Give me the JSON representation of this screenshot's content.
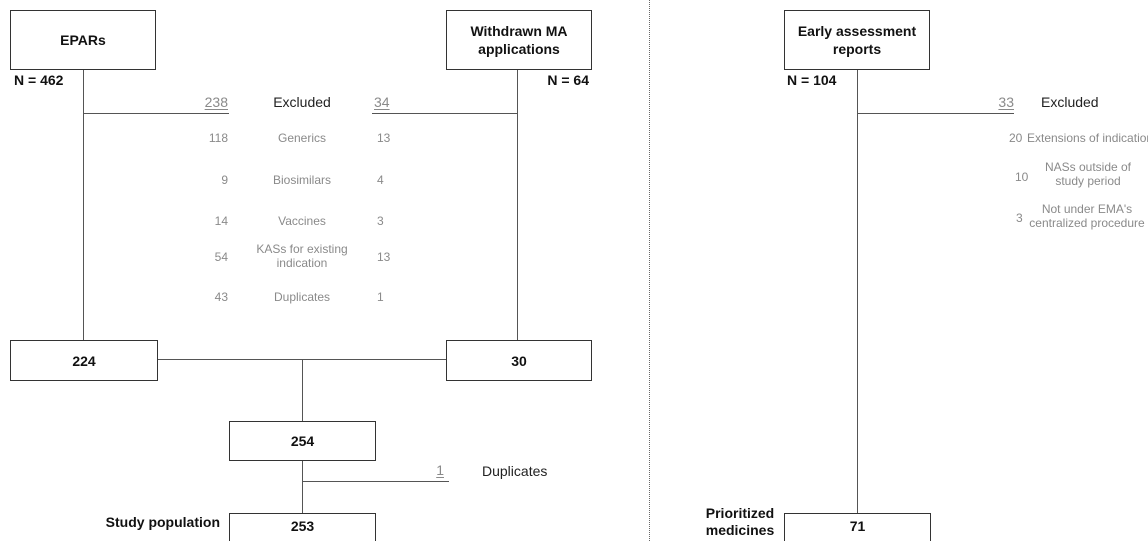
{
  "left": {
    "epars": {
      "label": "EPARs",
      "n": "N = 462"
    },
    "withdrawn": {
      "label": "Withdrawn MA applications",
      "n": "N = 64"
    },
    "excluded": {
      "label": "Excluded",
      "epars_total": "238",
      "withdrawn_total": "34"
    },
    "exclusions": [
      {
        "label": "Generics",
        "epars": "118",
        "withdrawn": "13"
      },
      {
        "label": "Biosimilars",
        "epars": "9",
        "withdrawn": "4"
      },
      {
        "label": "Vaccines",
        "epars": "14",
        "withdrawn": "3"
      },
      {
        "label": "KASs for existing indication",
        "epars": "54",
        "withdrawn": "13"
      },
      {
        "label": "Duplicates",
        "epars": "43",
        "withdrawn": "1"
      }
    ],
    "epars_remaining": "224",
    "withdrawn_remaining": "30",
    "combined": "254",
    "duplicates": {
      "count": "1",
      "label": "Duplicates"
    },
    "study_population": {
      "label": "Study population",
      "value": "253"
    }
  },
  "right": {
    "early": {
      "label": "Early assessment reports",
      "n": "N = 104"
    },
    "excluded": {
      "label": "Excluded",
      "total": "33"
    },
    "exclusions": [
      {
        "count": "20",
        "label": "Extensions of indication"
      },
      {
        "count": "10",
        "label": "NASs outside of study period"
      },
      {
        "count": "3",
        "label": "Not under EMA's centralized procedure"
      }
    ],
    "prioritized": {
      "label": "Prioritized medicines",
      "value": "71"
    }
  }
}
